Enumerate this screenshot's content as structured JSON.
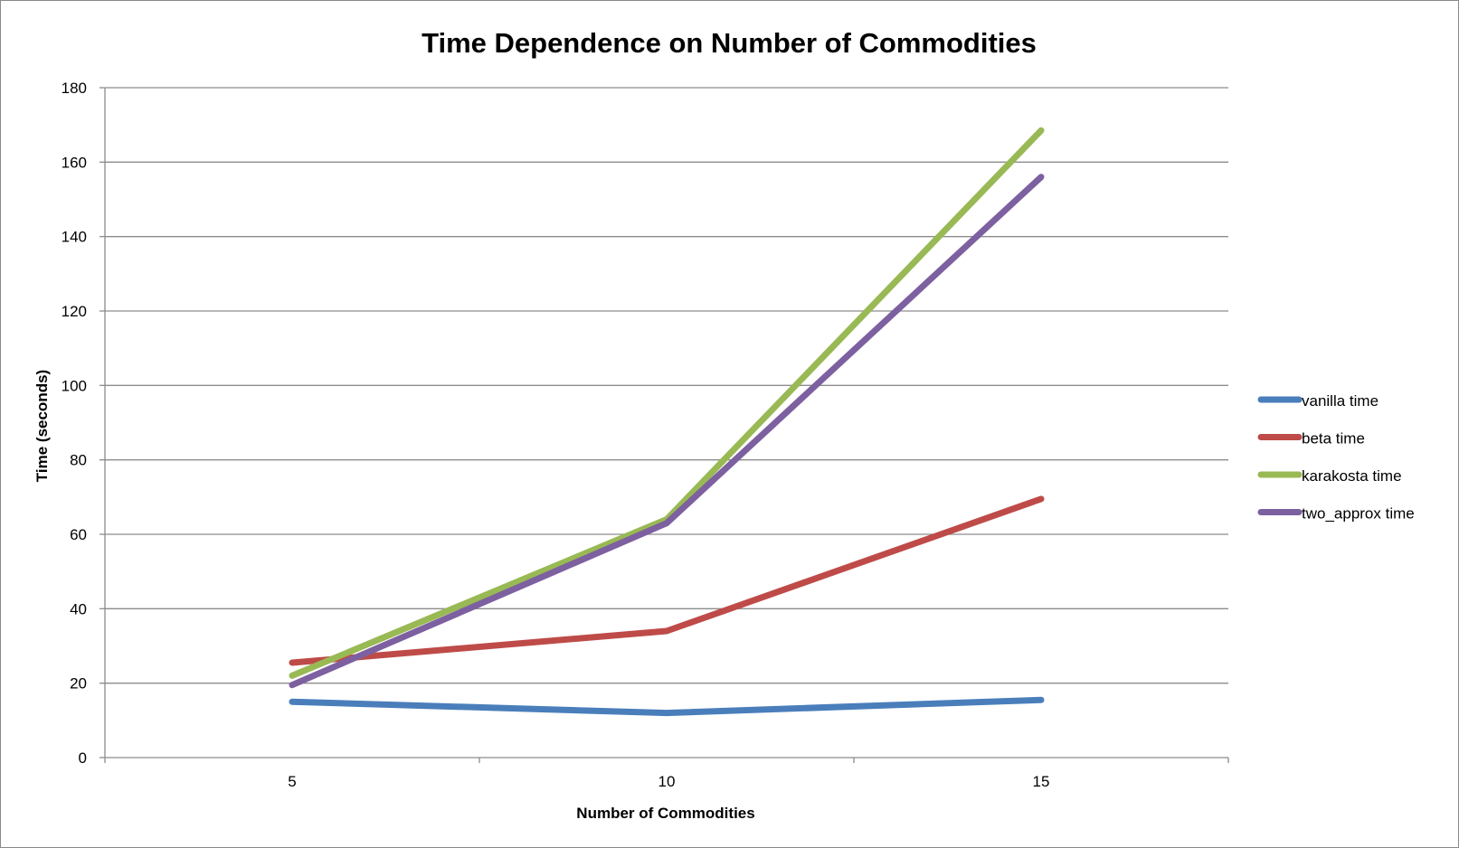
{
  "chart_data": {
    "type": "line",
    "title": "Time Dependence on Number of Commodities",
    "xlabel": "Number of Commodities",
    "ylabel": "Time (seconds)",
    "categories": [
      "5",
      "10",
      "15"
    ],
    "ylim": [
      0,
      180
    ],
    "yticks": [
      "0",
      "20",
      "40",
      "60",
      "80",
      "100",
      "120",
      "140",
      "160",
      "180"
    ],
    "grid": true,
    "legend_position": "right",
    "series": [
      {
        "name": "vanilla time",
        "color": "#4a7ebb",
        "values": [
          15,
          12,
          15.5
        ]
      },
      {
        "name": "beta time",
        "color": "#be4b48",
        "values": [
          25.5,
          34,
          69.5
        ]
      },
      {
        "name": "karakosta time",
        "color": "#98b954",
        "values": [
          22,
          64,
          168.5
        ]
      },
      {
        "name": "two_approx time",
        "color": "#7d60a0",
        "values": [
          19.5,
          63,
          156
        ]
      }
    ]
  }
}
